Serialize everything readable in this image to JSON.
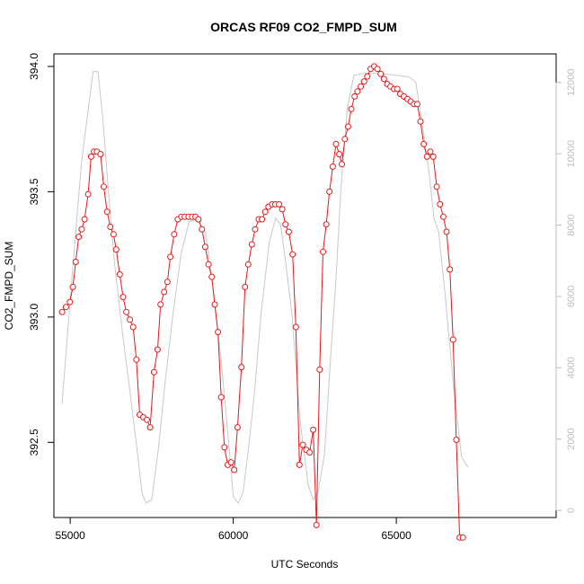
{
  "chart_data": {
    "type": "line",
    "title": "ORCAS RF09 CO2_FMPD_SUM",
    "xlabel": "UTC Seconds",
    "ylabel": "CO2_FMPD_SUM",
    "xlim": [
      54500,
      69900
    ],
    "ylim": [
      392.2,
      394.05
    ],
    "x_ticks": [
      55000,
      60000,
      65000
    ],
    "y_ticks": [
      392.5,
      393.0,
      393.5,
      394.0
    ],
    "y_tick_labels": [
      "392.5",
      "393.0",
      "393.5",
      "394.0"
    ],
    "y2lim": [
      -200,
      12800
    ],
    "y2_ticks": [
      0,
      2000,
      4000,
      6000,
      8000,
      10000,
      12000
    ],
    "y2_tick_labels": [
      "0",
      "2000",
      "4000",
      "6000",
      "8000",
      "10000",
      "12000"
    ],
    "grid": false,
    "series": [
      {
        "color": "#e41a1c",
        "style": "line-with-open-circles",
        "points": [
          [
            54750,
            393.02
          ],
          [
            54870,
            393.04
          ],
          [
            54990,
            393.06
          ],
          [
            55080,
            393.12
          ],
          [
            55170,
            393.22
          ],
          [
            55260,
            393.32
          ],
          [
            55350,
            393.35
          ],
          [
            55440,
            393.39
          ],
          [
            55550,
            393.49
          ],
          [
            55640,
            393.64
          ],
          [
            55730,
            393.66
          ],
          [
            55820,
            393.66
          ],
          [
            55930,
            393.65
          ],
          [
            56030,
            393.52
          ],
          [
            56130,
            393.42
          ],
          [
            56230,
            393.36
          ],
          [
            56330,
            393.33
          ],
          [
            56410,
            393.27
          ],
          [
            56520,
            393.17
          ],
          [
            56620,
            393.08
          ],
          [
            56720,
            393.02
          ],
          [
            56830,
            392.99
          ],
          [
            56930,
            392.96
          ],
          [
            57030,
            392.83
          ],
          [
            57130,
            392.61
          ],
          [
            57240,
            392.6
          ],
          [
            57350,
            392.59
          ],
          [
            57450,
            392.56
          ],
          [
            57570,
            392.78
          ],
          [
            57680,
            392.87
          ],
          [
            57770,
            393.05
          ],
          [
            57880,
            393.1
          ],
          [
            57980,
            393.14
          ],
          [
            58070,
            393.24
          ],
          [
            58190,
            393.33
          ],
          [
            58300,
            393.39
          ],
          [
            58410,
            393.4
          ],
          [
            58510,
            393.4
          ],
          [
            58630,
            393.4
          ],
          [
            58740,
            393.4
          ],
          [
            58840,
            393.4
          ],
          [
            58930,
            393.39
          ],
          [
            59040,
            393.35
          ],
          [
            59140,
            393.28
          ],
          [
            59240,
            393.21
          ],
          [
            59340,
            393.16
          ],
          [
            59430,
            393.05
          ],
          [
            59530,
            392.94
          ],
          [
            59630,
            392.68
          ],
          [
            59730,
            392.48
          ],
          [
            59830,
            392.41
          ],
          [
            59930,
            392.42
          ],
          [
            60030,
            392.39
          ],
          [
            60130,
            392.56
          ],
          [
            60250,
            392.8
          ],
          [
            60360,
            393.12
          ],
          [
            60460,
            393.21
          ],
          [
            60570,
            393.29
          ],
          [
            60670,
            393.35
          ],
          [
            60780,
            393.39
          ],
          [
            60880,
            393.39
          ],
          [
            60980,
            393.42
          ],
          [
            61080,
            393.44
          ],
          [
            61190,
            393.45
          ],
          [
            61290,
            393.45
          ],
          [
            61400,
            393.45
          ],
          [
            61500,
            393.43
          ],
          [
            61600,
            393.37
          ],
          [
            61700,
            393.34
          ],
          [
            61820,
            393.25
          ],
          [
            61920,
            392.96
          ],
          [
            62030,
            392.41
          ],
          [
            62130,
            392.49
          ],
          [
            62240,
            392.47
          ],
          [
            62340,
            392.46
          ],
          [
            62450,
            392.55
          ],
          [
            62550,
            392.17
          ],
          [
            62650,
            392.79
          ],
          [
            62750,
            393.26
          ],
          [
            62850,
            393.37
          ],
          [
            62950,
            393.5
          ],
          [
            63050,
            393.6
          ],
          [
            63150,
            393.69
          ],
          [
            63250,
            393.65
          ],
          [
            63330,
            393.61
          ],
          [
            63420,
            393.71
          ],
          [
            63520,
            393.76
          ],
          [
            63620,
            393.83
          ],
          [
            63720,
            393.88
          ],
          [
            63810,
            393.9
          ],
          [
            63910,
            393.92
          ],
          [
            64010,
            393.94
          ],
          [
            64110,
            393.96
          ],
          [
            64210,
            393.99
          ],
          [
            64320,
            394.0
          ],
          [
            64420,
            393.99
          ],
          [
            64520,
            393.97
          ],
          [
            64620,
            393.95
          ],
          [
            64720,
            393.93
          ],
          [
            64820,
            393.92
          ],
          [
            64930,
            393.91
          ],
          [
            65030,
            393.91
          ],
          [
            65120,
            393.89
          ],
          [
            65230,
            393.88
          ],
          [
            65340,
            393.87
          ],
          [
            65440,
            393.86
          ],
          [
            65540,
            393.85
          ],
          [
            65640,
            393.85
          ],
          [
            65740,
            393.78
          ],
          [
            65840,
            393.69
          ],
          [
            65940,
            393.64
          ],
          [
            66040,
            393.66
          ],
          [
            66130,
            393.64
          ],
          [
            66240,
            393.52
          ],
          [
            66340,
            393.45
          ],
          [
            66440,
            393.4
          ],
          [
            66540,
            393.34
          ],
          [
            66640,
            393.19
          ],
          [
            66740,
            392.91
          ],
          [
            66840,
            392.51
          ],
          [
            66940,
            392.12
          ],
          [
            67040,
            392.12
          ]
        ]
      },
      {
        "color": "#c8c8c8",
        "style": "line",
        "axis": "right",
        "points": [
          [
            54750,
            3000
          ],
          [
            55050,
            6500
          ],
          [
            55350,
            9800
          ],
          [
            55700,
            12300
          ],
          [
            55850,
            12300
          ],
          [
            56000,
            11000
          ],
          [
            56150,
            9200
          ],
          [
            56350,
            7000
          ],
          [
            56600,
            5000
          ],
          [
            56850,
            3200
          ],
          [
            57050,
            1700
          ],
          [
            57200,
            500
          ],
          [
            57320,
            200
          ],
          [
            57500,
            300
          ],
          [
            57700,
            1700
          ],
          [
            57900,
            3500
          ],
          [
            58150,
            5500
          ],
          [
            58400,
            7200
          ],
          [
            58650,
            8100
          ],
          [
            58900,
            8150
          ],
          [
            59150,
            7800
          ],
          [
            59400,
            6100
          ],
          [
            59650,
            4000
          ],
          [
            59850,
            2000
          ],
          [
            60000,
            400
          ],
          [
            60150,
            200
          ],
          [
            60300,
            500
          ],
          [
            60450,
            1600
          ],
          [
            60650,
            3300
          ],
          [
            60850,
            5500
          ],
          [
            61100,
            7500
          ],
          [
            61300,
            8200
          ],
          [
            61450,
            8000
          ],
          [
            61600,
            7000
          ],
          [
            61800,
            5500
          ],
          [
            62050,
            2500
          ],
          [
            62300,
            700
          ],
          [
            62450,
            300
          ],
          [
            62600,
            500
          ],
          [
            62800,
            1600
          ],
          [
            63000,
            4500
          ],
          [
            63150,
            6500
          ],
          [
            63300,
            9000
          ],
          [
            63500,
            11300
          ],
          [
            63700,
            12200
          ],
          [
            64000,
            12250
          ],
          [
            64500,
            12250
          ],
          [
            65000,
            12200
          ],
          [
            65400,
            12150
          ],
          [
            65600,
            12000
          ],
          [
            65800,
            10800
          ],
          [
            66000,
            9500
          ],
          [
            66150,
            8200
          ],
          [
            66300,
            7800
          ],
          [
            66500,
            6000
          ],
          [
            66750,
            3500
          ],
          [
            67000,
            1500
          ],
          [
            67200,
            1200
          ]
        ]
      }
    ]
  }
}
